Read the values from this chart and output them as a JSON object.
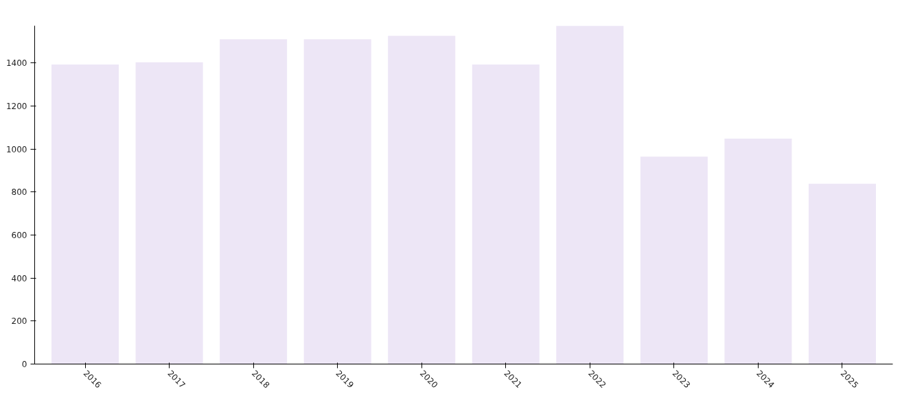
{
  "chart_data": {
    "type": "bar",
    "categories": [
      "2016",
      "2017",
      "2018",
      "2019",
      "2020",
      "2021",
      "2022",
      "2023",
      "2024",
      "2025"
    ],
    "values": [
      1393,
      1403,
      1510,
      1510,
      1526,
      1393,
      1573,
      964,
      1048,
      838
    ],
    "color": "#ede6f6",
    "ylim": [
      0,
      1573
    ],
    "yticks": [
      0,
      200,
      400,
      600,
      800,
      1000,
      1200,
      1400
    ],
    "grid": false
  }
}
